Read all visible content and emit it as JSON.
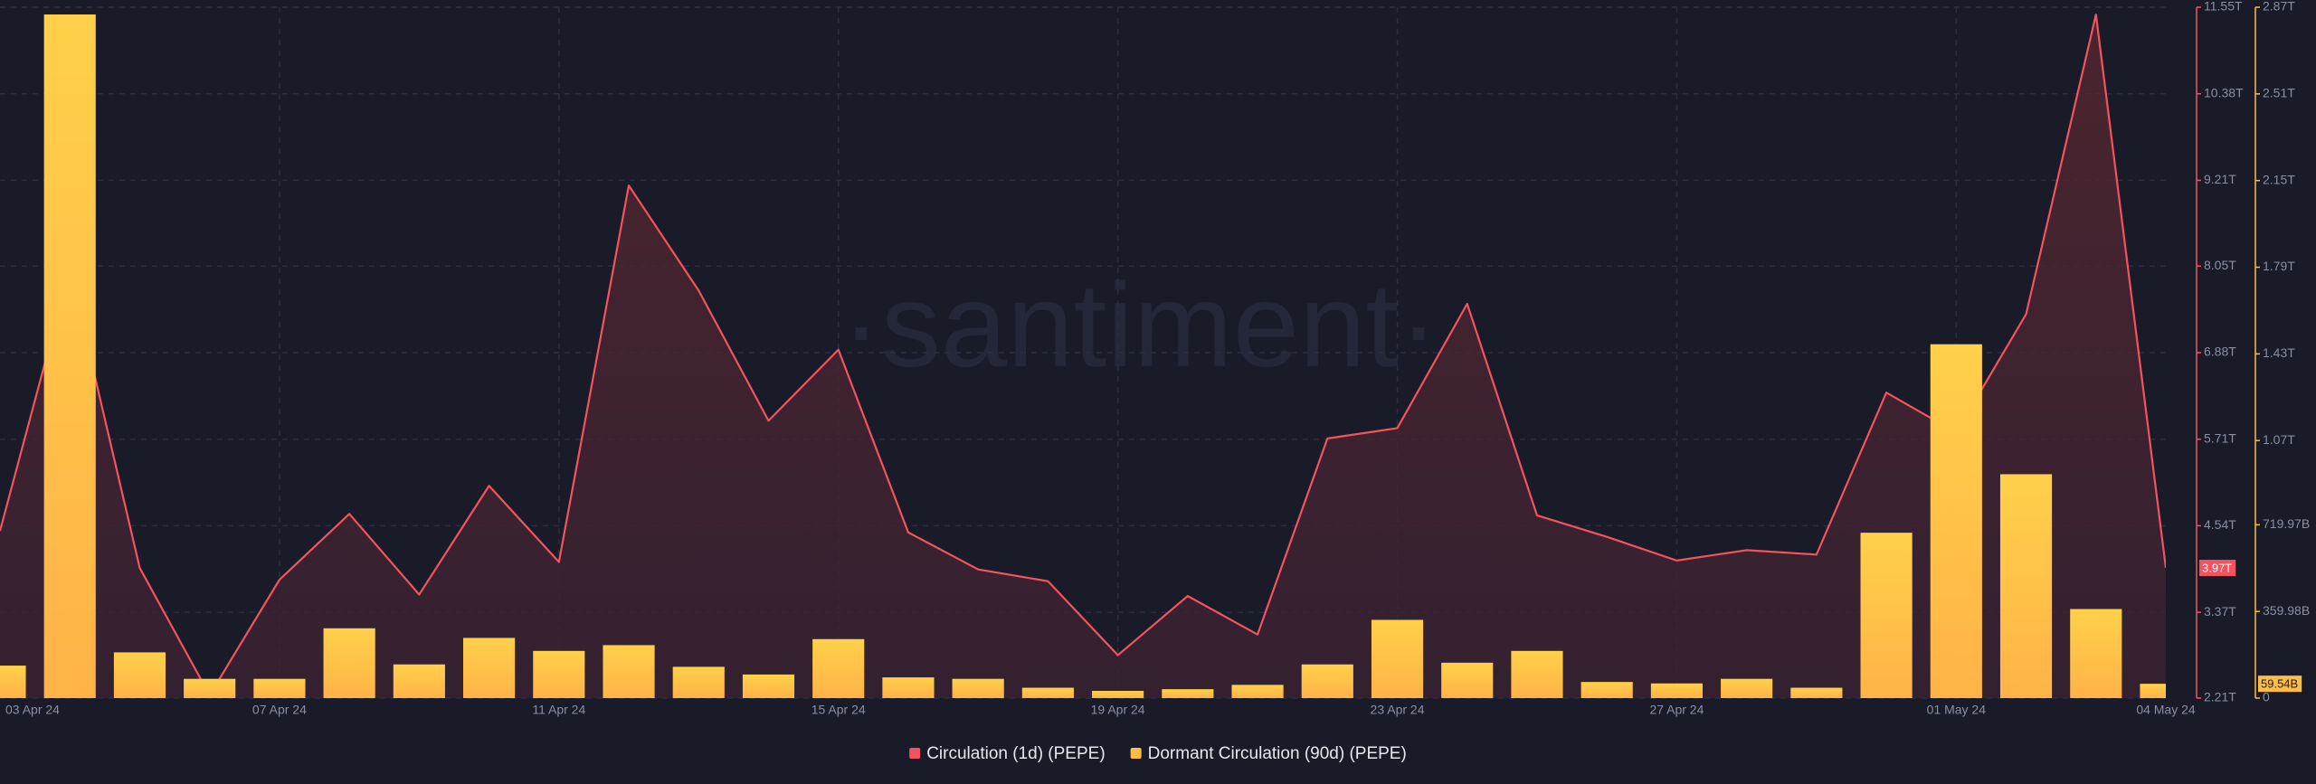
{
  "chart_data": {
    "type": "combo",
    "watermark": "·santiment·",
    "categories": [
      "03 Apr 24",
      null,
      null,
      null,
      "07 Apr 24",
      null,
      null,
      null,
      "11 Apr 24",
      null,
      null,
      null,
      "15 Apr 24",
      null,
      null,
      null,
      "19 Apr 24",
      null,
      null,
      null,
      "23 Apr 24",
      null,
      null,
      null,
      "27 Apr 24",
      null,
      null,
      null,
      "01 May 24",
      null,
      null,
      "04 May 24"
    ],
    "series": [
      {
        "name": "Circulation (1d) (PEPE)",
        "type": "line",
        "axis": "y",
        "color": "#f2545f",
        "values": [
          4470000000000.0,
          8000000000000.0,
          3970000000000.0,
          2250000000000.0,
          3810000000000.0,
          4700000000000.0,
          3610000000000.0,
          5080000000000.0,
          4050000000000.0,
          9140000000000.0,
          7720000000000.0,
          5960000000000.0,
          6920000000000.0,
          4450000000000.0,
          3950000000000.0,
          3790000000000.0,
          2790000000000.0,
          3590000000000.0,
          3070000000000.0,
          5720000000000.0,
          5860000000000.0,
          7540000000000.0,
          4680000000000.0,
          4390000000000.0,
          4070000000000.0,
          4210000000000.0,
          4150000000000.0,
          6340000000000.0,
          5800000000000.0,
          7400000000000.0,
          11450000000000.0,
          3970000000000.0
        ],
        "value_labels": [
          null,
          null,
          null,
          null,
          null,
          null,
          null,
          null,
          null,
          null,
          null,
          null,
          null,
          null,
          null,
          null,
          null,
          null,
          null,
          null,
          null,
          null,
          null,
          null,
          null,
          null,
          null,
          null,
          null,
          null,
          null,
          "3.97T"
        ]
      },
      {
        "name": "Dormant Circulation (90d) (PEPE)",
        "type": "bar",
        "axis": "y2",
        "color": "#ffbd45",
        "values": [
          135000000000.0,
          2840000000000.0,
          190000000000.0,
          80000000000.0,
          80000000000.0,
          290000000000.0,
          140000000000.0,
          250000000000.0,
          196000000000.0,
          220000000000.0,
          130000000000.0,
          98000000000.0,
          245000000000.0,
          86000000000.0,
          80000000000.0,
          43000000000.0,
          30000000000.0,
          37000000000.0,
          55000000000.0,
          140000000000.0,
          325000000000.0,
          147000000000.0,
          196000000000.0,
          67000000000.0,
          61000000000.0,
          80000000000.0,
          43000000000.0,
          687000000000.0,
          1470000000000.0,
          930000000000.0,
          370000000000.0,
          59540000000.0
        ],
        "value_labels": [
          null,
          null,
          null,
          null,
          null,
          null,
          null,
          null,
          null,
          null,
          null,
          null,
          null,
          null,
          null,
          null,
          null,
          null,
          null,
          null,
          null,
          null,
          null,
          null,
          null,
          null,
          null,
          null,
          null,
          null,
          null,
          "59.54B"
        ]
      }
    ],
    "ylim": [
      2210000000000.0,
      11550000000000.0
    ],
    "yticks": [
      {
        "value": 2210000000000.0,
        "label": "2.21T"
      },
      {
        "value": 3370000000000.0,
        "label": "3.37T"
      },
      {
        "value": 4540000000000.0,
        "label": "4.54T"
      },
      {
        "value": 5710000000000.0,
        "label": "5.71T"
      },
      {
        "value": 6880000000000.0,
        "label": "6.88T"
      },
      {
        "value": 8050000000000.0,
        "label": "8.05T"
      },
      {
        "value": 9210000000000.0,
        "label": "9.21T"
      },
      {
        "value": 10380000000000.0,
        "label": "10.38T"
      },
      {
        "value": 11550000000000.0,
        "label": "11.55T"
      }
    ],
    "y2lim": [
      0,
      2870000000000.0
    ],
    "y2ticks": [
      0,
      {
        "value": 359980000000.0,
        "label": "359.98B"
      },
      {
        "value": 719970000000.0,
        "label": "719.97B"
      },
      {
        "value": 1070000000000.0,
        "label": "1.07T"
      },
      {
        "value": 1430000000000.0,
        "label": "1.43T"
      },
      {
        "value": 1790000000000.0,
        "label": "1.79T"
      },
      {
        "value": 2150000000000.0,
        "label": "2.15T"
      },
      {
        "value": 2510000000000.0,
        "label": "2.51T"
      },
      {
        "value": 2870000000000.0,
        "label": "2.87T"
      }
    ],
    "grid": true,
    "legend": "bottom"
  }
}
